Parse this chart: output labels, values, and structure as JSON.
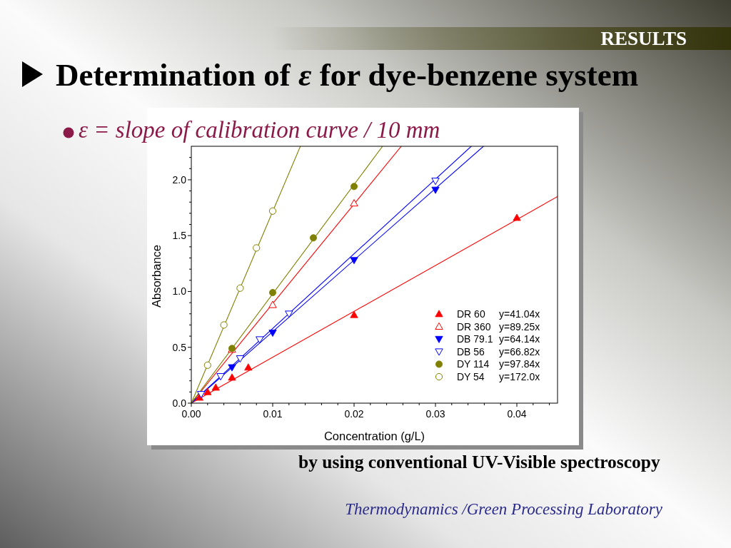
{
  "chart_data": {
    "type": "scatter",
    "title": "Determination of ε for dye-benzene system",
    "subtitle": "ε = slope of calibration curve / 10 mm",
    "xlabel": "Concentration (g/L)",
    "ylabel": "Absorbance",
    "annotations": [
      "RESULTS",
      "by using conventional UV-Visible spectroscopy",
      "Thermodynamics /Green Processing Laboratory",
      "y=41.04x",
      "y=89.25x",
      "y=64.14x",
      "y=66.82x",
      "y=97.84x",
      "y=172.0x"
    ],
    "xlim": [
      0,
      0.045
    ],
    "xticks": [
      {
        "value": 0,
        "label": "0.00"
      },
      {
        "value": 0.002,
        "label": null
      },
      {
        "value": 0.004,
        "label": null
      },
      {
        "value": 0.006,
        "label": null
      },
      {
        "value": 0.008,
        "label": null
      },
      0.01,
      {
        "value": 0.012,
        "label": null
      },
      {
        "value": 0.014,
        "label": null
      },
      {
        "value": 0.016,
        "label": null
      },
      {
        "value": 0.018,
        "label": null
      },
      0.02,
      {
        "value": 0.022,
        "label": null
      },
      {
        "value": 0.024,
        "label": null
      },
      {
        "value": 0.026,
        "label": null
      },
      {
        "value": 0.028,
        "label": null
      },
      0.03,
      {
        "value": 0.032,
        "label": null
      },
      {
        "value": 0.034,
        "label": null
      },
      {
        "value": 0.036,
        "label": null
      },
      {
        "value": 0.038,
        "label": null
      },
      0.04,
      {
        "value": 0.042,
        "label": null
      },
      {
        "value": 0.044,
        "label": null
      }
    ],
    "ylim": [
      0,
      2.3
    ],
    "yticks": [
      {
        "value": 0,
        "label": "0.0"
      },
      {
        "value": 0.1,
        "label": null
      },
      {
        "value": 0.2,
        "label": null
      },
      {
        "value": 0.3,
        "label": null
      },
      {
        "value": 0.4,
        "label": null
      },
      0.5,
      {
        "value": 0.6,
        "label": null
      },
      {
        "value": 0.7,
        "label": null
      },
      {
        "value": 0.8,
        "label": null
      },
      {
        "value": 0.9,
        "label": null
      },
      {
        "value": 1,
        "label": "1.0"
      },
      {
        "value": 1.1,
        "label": null
      },
      {
        "value": 1.2,
        "label": null
      },
      {
        "value": 1.3,
        "label": null
      },
      {
        "value": 1.4,
        "label": null
      },
      1.5,
      {
        "value": 1.6,
        "label": null
      },
      {
        "value": 1.7,
        "label": null
      },
      {
        "value": 1.8,
        "label": null
      },
      {
        "value": 1.9,
        "label": null
      },
      {
        "value": 2,
        "label": "2.0"
      },
      {
        "value": 2.1,
        "label": null
      },
      {
        "value": 2.2,
        "label": null
      }
    ],
    "legend": "bottom right",
    "series": [
      {
        "name": "DR 60",
        "marker": "triangle",
        "color": "#ff0000",
        "x": [
          0.001,
          0.002,
          0.003,
          0.005,
          0.007,
          0.02,
          0.04
        ],
        "values": [
          0.05,
          0.1,
          0.14,
          0.23,
          0.32,
          0.79,
          1.66
        ]
      },
      {
        "type": "line",
        "color": "#ff0000",
        "x": [
          0,
          0.045
        ],
        "values": [
          0,
          1.85
        ]
      },
      {
        "name": "DR 360",
        "marker": "triangle-open",
        "color": "#ff0000",
        "x": [
          0.005,
          0.01,
          0.02
        ],
        "values": [
          0.48,
          0.88,
          1.79
        ]
      },
      {
        "type": "line",
        "color": "#ff0000",
        "x": [
          0,
          0.0258
        ],
        "values": [
          0,
          2.3
        ]
      },
      {
        "name": "DB 79.1",
        "marker": "triangle-down",
        "color": "#0000ff",
        "x": [
          0.005,
          0.01,
          0.02,
          0.03
        ],
        "values": [
          0.32,
          0.63,
          1.28,
          1.91
        ]
      },
      {
        "type": "line",
        "color": "#0000ff",
        "x": [
          0,
          0.0359
        ],
        "values": [
          0,
          2.3
        ]
      },
      {
        "name": "DB 56",
        "marker": "triangle-down-open",
        "color": "#0000ff",
        "x": [
          0.0012,
          0.0036,
          0.006,
          0.0084,
          0.012,
          0.03
        ],
        "values": [
          0.08,
          0.24,
          0.4,
          0.57,
          0.8,
          1.99
        ]
      },
      {
        "type": "line",
        "color": "#0000ff",
        "x": [
          0,
          0.0344
        ],
        "values": [
          0,
          2.3
        ]
      },
      {
        "name": "DY 114",
        "marker": "circle",
        "color": "#808000",
        "x": [
          0.005,
          0.01,
          0.015,
          0.02
        ],
        "values": [
          0.49,
          0.99,
          1.48,
          1.94
        ]
      },
      {
        "type": "line",
        "color": "#808000",
        "x": [
          0,
          0.0235
        ],
        "values": [
          0,
          2.3
        ]
      },
      {
        "name": "DY 54",
        "marker": "circle-open",
        "color": "#808000",
        "x": [
          0.002,
          0.004,
          0.006,
          0.008,
          0.01
        ],
        "values": [
          0.34,
          0.7,
          1.03,
          1.39,
          1.72
        ]
      },
      {
        "type": "line",
        "color": "#808000",
        "x": [
          0,
          0.0134
        ],
        "values": [
          0,
          2.3
        ]
      }
    ]
  }
}
